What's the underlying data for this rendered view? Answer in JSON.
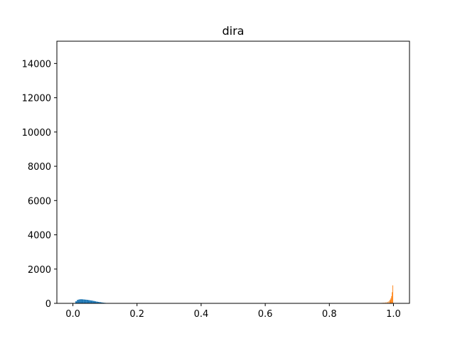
{
  "chart_data": {
    "type": "bar",
    "title": "dira",
    "xlabel": "",
    "ylabel": "",
    "xlim": [
      -0.05,
      1.05
    ],
    "ylim": [
      0,
      15300
    ],
    "xticks": [
      0.0,
      0.2,
      0.4,
      0.6,
      0.8,
      1.0
    ],
    "xtick_labels": [
      "0.0",
      "0.2",
      "0.4",
      "0.6",
      "0.8",
      "1.0"
    ],
    "yticks": [
      0,
      2000,
      4000,
      6000,
      8000,
      10000,
      12000,
      14000
    ],
    "ytick_labels": [
      "0",
      "2000",
      "4000",
      "6000",
      "8000",
      "10000",
      "12000",
      "14000"
    ],
    "grid": false,
    "series": [
      {
        "color": "#1f77b4",
        "bin_width": 0.005,
        "x": [
          0.005,
          0.01,
          0.015,
          0.02,
          0.025,
          0.03,
          0.035,
          0.04,
          0.045,
          0.05,
          0.055,
          0.06,
          0.065,
          0.07,
          0.075,
          0.08,
          0.085,
          0.09,
          0.095,
          0.1,
          0.105,
          0.11
        ],
        "values": [
          20,
          120,
          200,
          230,
          240,
          235,
          225,
          215,
          205,
          190,
          175,
          160,
          140,
          120,
          100,
          85,
          70,
          55,
          40,
          28,
          15,
          8
        ]
      },
      {
        "color": "#ff7f0e",
        "bin_width": 0.002,
        "x": [
          0.95,
          0.955,
          0.96,
          0.965,
          0.97,
          0.975,
          0.98,
          0.984,
          0.988,
          0.99,
          0.992,
          0.994,
          0.996,
          0.998
        ],
        "values": [
          10,
          15,
          20,
          30,
          40,
          55,
          75,
          110,
          160,
          220,
          300,
          420,
          650,
          1050
        ]
      }
    ]
  }
}
